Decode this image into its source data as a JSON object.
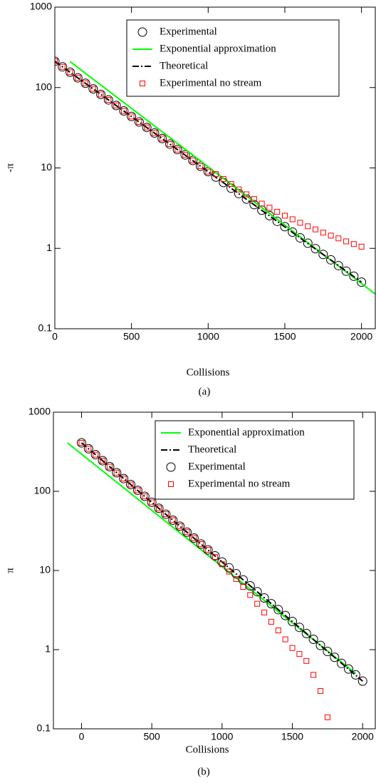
{
  "chart_data": [
    {
      "type": "scatter",
      "caption": "(a)",
      "xlabel": "Collisions",
      "ylabel": "-π",
      "log_y": true,
      "legend": "upper right",
      "xlim": [
        0,
        2090
      ],
      "xticks": [
        0,
        500,
        1000,
        1500,
        2000
      ],
      "ylim": [
        0.1,
        1000
      ],
      "yticks": [
        0.1,
        1,
        10,
        100,
        1000
      ],
      "series": [
        {
          "name": "Experimental",
          "color": "#000000",
          "marker": "circle",
          "x": [
            0,
            50,
            100,
            150,
            200,
            250,
            300,
            350,
            400,
            450,
            500,
            550,
            600,
            650,
            700,
            750,
            800,
            850,
            900,
            950,
            1000,
            1050,
            1100,
            1150,
            1200,
            1250,
            1300,
            1350,
            1400,
            1450,
            1500,
            1550,
            1600,
            1650,
            1700,
            1750,
            1800,
            1850,
            1900,
            1950,
            2000
          ],
          "values": [
            212,
            181,
            155,
            132,
            113,
            96.3,
            82.2,
            70.2,
            59.9,
            51.2,
            43.7,
            37.3,
            31.9,
            27.2,
            23.2,
            19.8,
            16.9,
            14.5,
            12.4,
            10.5,
            9.0,
            7.7,
            6.6,
            5.6,
            4.8,
            4.1,
            3.5,
            2.98,
            2.55,
            2.17,
            1.86,
            1.59,
            1.35,
            1.16,
            0.99,
            0.84,
            0.72,
            0.61,
            0.52,
            0.45,
            0.38
          ]
        },
        {
          "name": "Exponential approximation",
          "color": "#00ff00",
          "line": "solid",
          "x": [
            100,
            2090
          ],
          "values": [
            210,
            0.27
          ]
        },
        {
          "name": "Theoretical",
          "color": "#000000",
          "line": "dashdot",
          "x": [
            0,
            2000
          ],
          "values": [
            212,
            0.38
          ]
        },
        {
          "name": "Experimental no stream",
          "color": "#ff0000",
          "marker": "square",
          "x": [
            0,
            50,
            100,
            150,
            200,
            250,
            300,
            350,
            400,
            450,
            500,
            550,
            600,
            650,
            700,
            750,
            800,
            850,
            900,
            950,
            1000,
            1050,
            1100,
            1150,
            1200,
            1250,
            1300,
            1350,
            1400,
            1450,
            1500,
            1550,
            1600,
            1650,
            1700,
            1750,
            1800,
            1850,
            1900,
            1950,
            2000
          ],
          "values": [
            212,
            181,
            155,
            132,
            113,
            96.3,
            82.2,
            70.2,
            59.9,
            51.2,
            43.7,
            37.3,
            31.9,
            27.2,
            23.2,
            19.8,
            16.9,
            14.5,
            12.4,
            10.5,
            9.0,
            8.4,
            7.3,
            6.3,
            5.4,
            4.7,
            4.1,
            3.6,
            3.2,
            2.85,
            2.55,
            2.3,
            2.08,
            1.88,
            1.72,
            1.57,
            1.44,
            1.33,
            1.22,
            1.13,
            1.05
          ]
        }
      ]
    },
    {
      "type": "scatter",
      "caption": "(b)",
      "xlabel": "Collisions",
      "ylabel": "π",
      "log_y": true,
      "legend": "upper right",
      "xlim": [
        -200,
        2090
      ],
      "xticks": [
        0,
        500,
        1000,
        1500,
        2000
      ],
      "ylim": [
        0.1,
        1000
      ],
      "yticks": [
        0.1,
        1,
        10,
        100,
        1000
      ],
      "series": [
        {
          "name": "Exponential approximation",
          "color": "#00ff00",
          "line": "solid",
          "x": [
            -100,
            1950
          ],
          "values": [
            410,
            0.5
          ]
        },
        {
          "name": "Theoretical",
          "color": "#000000",
          "line": "dashdot",
          "x": [
            0,
            2000
          ],
          "values": [
            410,
            0.4
          ]
        },
        {
          "name": "Experimental",
          "color": "#000000",
          "marker": "circle",
          "x": [
            0,
            50,
            100,
            150,
            200,
            250,
            300,
            350,
            400,
            450,
            500,
            550,
            600,
            650,
            700,
            750,
            800,
            850,
            900,
            950,
            1000,
            1050,
            1100,
            1150,
            1200,
            1250,
            1300,
            1350,
            1400,
            1450,
            1500,
            1550,
            1600,
            1650,
            1700,
            1750,
            1800,
            1850,
            1900,
            1950,
            2000
          ],
          "values": [
            410,
            345,
            290,
            244,
            205,
            172,
            145,
            122,
            103,
            86.4,
            72.6,
            61.1,
            51.4,
            43.2,
            36.3,
            30.5,
            25.7,
            21.6,
            18.2,
            15.3,
            12.8,
            10.8,
            9.1,
            7.6,
            6.4,
            5.4,
            4.5,
            3.8,
            3.2,
            2.7,
            2.27,
            1.91,
            1.6,
            1.35,
            1.13,
            0.95,
            0.8,
            0.67,
            0.57,
            0.48,
            0.4
          ]
        },
        {
          "name": "Experimental no stream",
          "color": "#ff0000",
          "marker": "square",
          "x": [
            0,
            50,
            100,
            150,
            200,
            250,
            300,
            350,
            400,
            450,
            500,
            550,
            600,
            650,
            700,
            750,
            800,
            850,
            900,
            950,
            1000,
            1050,
            1100,
            1150,
            1200,
            1250,
            1300,
            1350,
            1400,
            1450,
            1500,
            1550,
            1600,
            1650,
            1700,
            1750
          ],
          "values": [
            410,
            345,
            290,
            244,
            205,
            172,
            145,
            122,
            103,
            86.4,
            72.6,
            61.1,
            51.4,
            43.2,
            36.3,
            30.5,
            25.7,
            21.6,
            18.2,
            14.8,
            12.0,
            9.7,
            7.8,
            6.2,
            4.9,
            3.8,
            2.95,
            2.25,
            1.75,
            1.35,
            1.05,
            0.88,
            0.72,
            0.48,
            0.3,
            0.14
          ]
        }
      ]
    }
  ]
}
